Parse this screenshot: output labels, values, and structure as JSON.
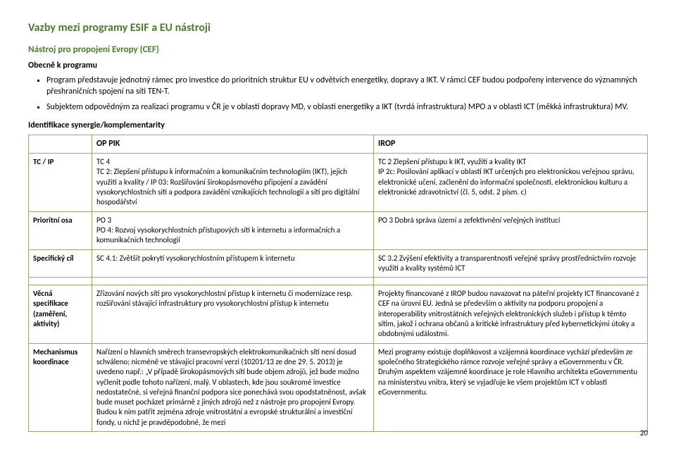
{
  "title": "Vazby mezi programy ESIF a EU nástroji",
  "section_heading": "Nástroj pro propojení Evropy (CEF)",
  "general_label": "Obecně k programu",
  "bullets": [
    "Program představuje jednotný rámec pro investice do prioritních struktur EU v odvětvích energetiky, dopravy a IKT. V rámci CEF budou podpořeny intervence do významných přeshraničních spojení na síti TEN-T.",
    "Subjektem odpovědným za realizaci programu v ČR je v oblasti dopravy MD, v oblasti energetiky a IKT (tvrdá infrastruktura) MPO a v oblasti ICT (měkká infrastruktura) MV."
  ],
  "synergy_heading": "Identifikace synergie/komplementarity",
  "table1": {
    "col_headers": [
      "OP PIK",
      "IROP"
    ],
    "rows": [
      {
        "label": "TC / IP",
        "c1": "TC 4\nTC 2: Zlepšení přístupu k informačním a komunikačním technologiím (IKT), jejich využití a kvality / IP 03: Rozšiřování širokopásmového připojení a zavádění vysokorychlostních sítí a podpora zavádění vznikajících technologií a sítí pro digitální hospodářství",
        "c2": "TC 2 Zlepšení přístupu k IKT, využití a kvality IKT\nIP 2c: Posilování aplikací v oblasti IKT určených pro elektronickou veřejnou správu, elektronické učení, začlenění do informační společnosti, elektronickou kulturu a elektronické zdravotnictví (čl. 5, odst. 2 písm. c)"
      },
      {
        "label": "Prioritní osa",
        "c1": "PO 3\nPO 4: Rozvoj vysokorychlostních přístupových sítí k internetu a informačních a komunikačních technologií",
        "c2": "PO 3 Dobrá správa území a zefektivnění veřejných institucí"
      },
      {
        "label": "Specifický cíl",
        "c1": "SC 4.1: Zvětšit pokrytí vysokorychlostním přístupem k internetu",
        "c2": "SC 3.2 Zvýšení efektivity a transparentnosti veřejné správy prostřednictvím rozvoje využití a kvality systémů ICT"
      }
    ]
  },
  "table2": {
    "rows": [
      {
        "label": "Věcná specifikace\n(zaměření, aktivity)",
        "c1": "Zřizování nových sítí pro vysokorychlostní přístup k internetu či modernizace resp. rozšiřování stávající infrastruktury pro vysokorychlostní přístup k internetu",
        "c2": "Projekty financované z IROP budou navazovat na páteřní projekty ICT financované z CEF na úrovni EU. Jedná se především o aktivity na podporu propojení a interoperability vnitrostátních veřejných elektronických služeb i přístup k těmto sítím, jakož i ochrana občanů a kritické infrastruktury před kybernetickými útoky a obdobnými událostmi."
      },
      {
        "label": "Mechanismus koordinace",
        "c1": "Nařízení o hlavních směrech transevropských elektrokomunikačních sítí není dosud schváleno; nicméně ve stávající pracovní verzi (10201/13 ze dne 29. 5. 2013) je uvedeno např.: „V případě širokopásmových sítí bude objem zdrojů, jež bude možno vyčlenit podle tohoto nařízení, malý. V oblastech, kde jsou soukromé investice nedostatečné, si veřejná finanční podpora sice ponechává svou opodstatněnost, avšak bude muset pocházet primárně z jiných zdrojů než z nástroje pro propojení Evropy. Budou k nim patřit zejména zdroje vnitrostátní a evropské strukturální a investiční fondy, u nichž je pravděpodobné, že mezi",
        "c2": "Mezi programy existuje doplňkovost a vzájemná koordinace vychází především ze společného Strategického rámce rozvoje veřejné správy a eGovernmentu v ČR. Druhým aspektem vzájemné koordinace je role Hlavního architekta eGovernmentu na ministerstvu vnitra, který se vyjadřuje ke všem projektům ICT v oblasti eGovernmentu."
      }
    ]
  },
  "page_number": "20"
}
